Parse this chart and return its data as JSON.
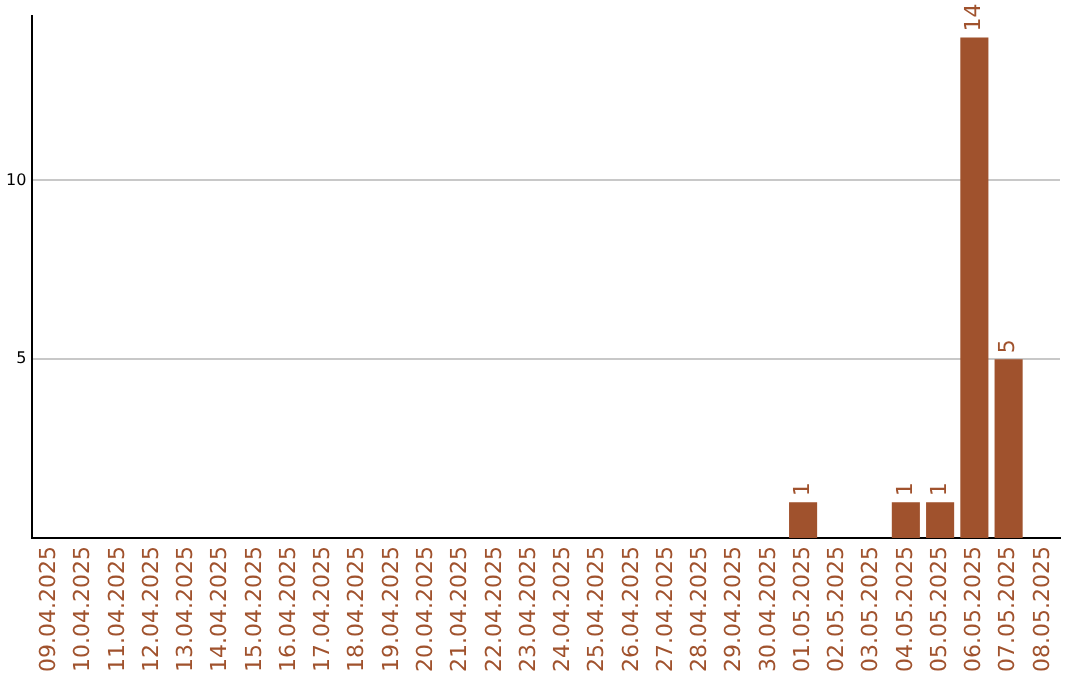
{
  "chart_data": {
    "type": "bar",
    "categories": [
      "09.04.2025",
      "10.04.2025",
      "11.04.2025",
      "12.04.2025",
      "13.04.2025",
      "14.04.2025",
      "15.04.2025",
      "16.04.2025",
      "17.04.2025",
      "18.04.2025",
      "19.04.2025",
      "20.04.2025",
      "21.04.2025",
      "22.04.2025",
      "23.04.2025",
      "24.04.2025",
      "25.04.2025",
      "26.04.2025",
      "27.04.2025",
      "28.04.2025",
      "29.04.2025",
      "30.04.2025",
      "01.05.2025",
      "02.05.2025",
      "03.05.2025",
      "04.05.2025",
      "05.05.2025",
      "06.05.2025",
      "07.05.2025",
      "08.05.2025"
    ],
    "values": [
      0,
      0,
      0,
      0,
      0,
      0,
      0,
      0,
      0,
      0,
      0,
      0,
      0,
      0,
      0,
      0,
      0,
      0,
      0,
      0,
      0,
      0,
      1,
      0,
      0,
      1,
      1,
      14,
      5,
      0
    ],
    "value_labels": [
      null,
      null,
      null,
      null,
      null,
      null,
      null,
      null,
      null,
      null,
      null,
      null,
      null,
      null,
      null,
      null,
      null,
      null,
      null,
      null,
      null,
      null,
      "1",
      null,
      null,
      "1",
      "1",
      "14",
      "5",
      null
    ],
    "color": "#a0522d",
    "ylim": [
      0,
      14.6
    ],
    "yticks": [
      5,
      10
    ],
    "grid": "y",
    "legend": false
  }
}
